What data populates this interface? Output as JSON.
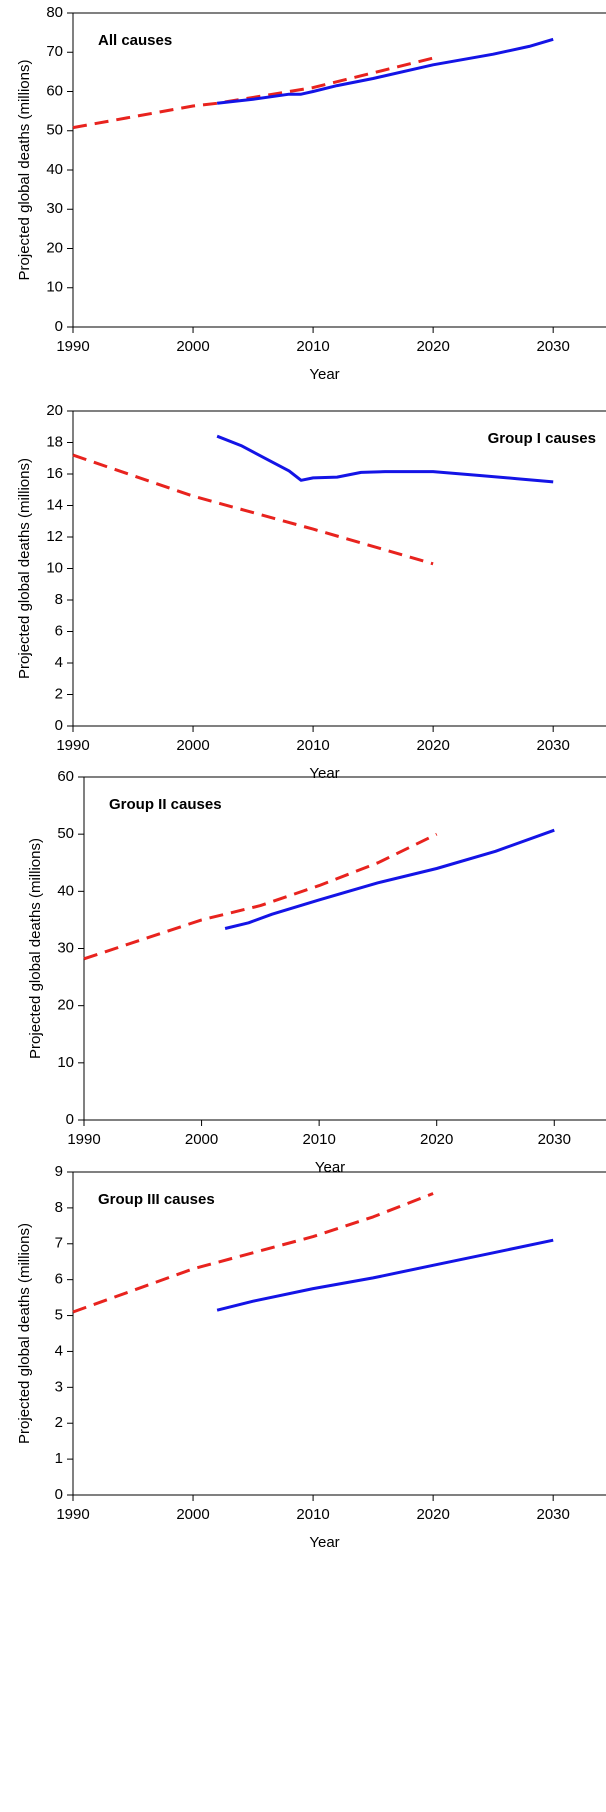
{
  "chart_data": [
    {
      "type": "line",
      "title": "All causes",
      "title_position": "left",
      "x_label": "Year",
      "y_label": "Projected global deaths (millions)",
      "xlim": [
        1990,
        2034.4
      ],
      "xticks": [
        1990,
        2000,
        2010,
        2020,
        2030
      ],
      "ylim": [
        0,
        80
      ],
      "yticks": [
        0,
        10,
        20,
        30,
        40,
        50,
        60,
        70,
        80
      ],
      "series": [
        {
          "color": "#e8231e",
          "style": "dashed",
          "x": [
            1990,
            2000,
            2002,
            2010,
            2020
          ],
          "values": [
            50.8,
            56.3,
            57,
            61,
            68.5
          ]
        },
        {
          "color": "#1414e6",
          "style": "solid",
          "x": [
            2002,
            2005,
            2008,
            2009,
            2010,
            2012,
            2015,
            2020,
            2025,
            2028,
            2030
          ],
          "values": [
            57,
            58,
            59.3,
            59.3,
            60,
            61.5,
            63.3,
            66.8,
            69.5,
            71.5,
            73.3
          ]
        }
      ]
    },
    {
      "type": "line",
      "title": "Group I causes",
      "title_position": "right",
      "x_label": "Year",
      "y_label": "Projected global deaths (millions)",
      "xlim": [
        1990,
        2034.4
      ],
      "xticks": [
        1990,
        2000,
        2010,
        2020,
        2030
      ],
      "ylim": [
        0,
        20
      ],
      "yticks": [
        0,
        2,
        4,
        6,
        8,
        10,
        12,
        14,
        16,
        18,
        20
      ],
      "series": [
        {
          "color": "#e8231e",
          "style": "dashed",
          "x": [
            1990,
            2000,
            2010,
            2020
          ],
          "values": [
            17.2,
            14.6,
            12.5,
            10.3
          ]
        },
        {
          "color": "#1414e6",
          "style": "solid",
          "x": [
            2002,
            2004,
            2006,
            2008,
            2009,
            2010,
            2012,
            2014,
            2016,
            2020,
            2024,
            2027,
            2030
          ],
          "values": [
            18.4,
            17.8,
            17,
            16.2,
            15.6,
            15.75,
            15.8,
            16.1,
            16.15,
            16.15,
            15.9,
            15.7,
            15.5
          ]
        }
      ]
    },
    {
      "type": "line",
      "title": "Group II causes",
      "title_position": "left",
      "x_label": "Year",
      "y_label": "Projected global deaths (millions)",
      "xlim": [
        1990,
        2034.4
      ],
      "xticks": [
        1990,
        2000,
        2010,
        2020,
        2030
      ],
      "ylim": [
        0,
        60
      ],
      "yticks": [
        0,
        10,
        20,
        30,
        40,
        50,
        60
      ],
      "series": [
        {
          "color": "#e8231e",
          "style": "dashed",
          "x": [
            1990,
            2000,
            2005,
            2010,
            2015,
            2020
          ],
          "values": [
            28.2,
            35,
            37.5,
            41,
            45,
            50
          ]
        },
        {
          "color": "#1414e6",
          "style": "solid",
          "x": [
            2002,
            2004,
            2006,
            2010,
            2015,
            2020,
            2025,
            2030
          ],
          "values": [
            33.5,
            34.5,
            36,
            38.5,
            41.5,
            44,
            47,
            50.7
          ]
        }
      ]
    },
    {
      "type": "line",
      "title": "Group III causes",
      "title_position": "left",
      "x_label": "Year",
      "y_label": "Projected global deaths (millions)",
      "xlim": [
        1990,
        2034.4
      ],
      "xticks": [
        1990,
        2000,
        2010,
        2020,
        2030
      ],
      "ylim": [
        0,
        9
      ],
      "yticks": [
        0,
        1,
        2,
        3,
        4,
        5,
        6,
        7,
        8,
        9
      ],
      "series": [
        {
          "color": "#e8231e",
          "style": "dashed",
          "x": [
            1990,
            2000,
            2010,
            2015,
            2020
          ],
          "values": [
            5.1,
            6.3,
            7.2,
            7.75,
            8.4
          ]
        },
        {
          "color": "#1414e6",
          "style": "solid",
          "x": [
            2002,
            2005,
            2010,
            2015,
            2020,
            2025,
            2030
          ],
          "values": [
            5.15,
            5.4,
            5.75,
            6.05,
            6.4,
            6.75,
            7.1
          ]
        }
      ]
    }
  ]
}
